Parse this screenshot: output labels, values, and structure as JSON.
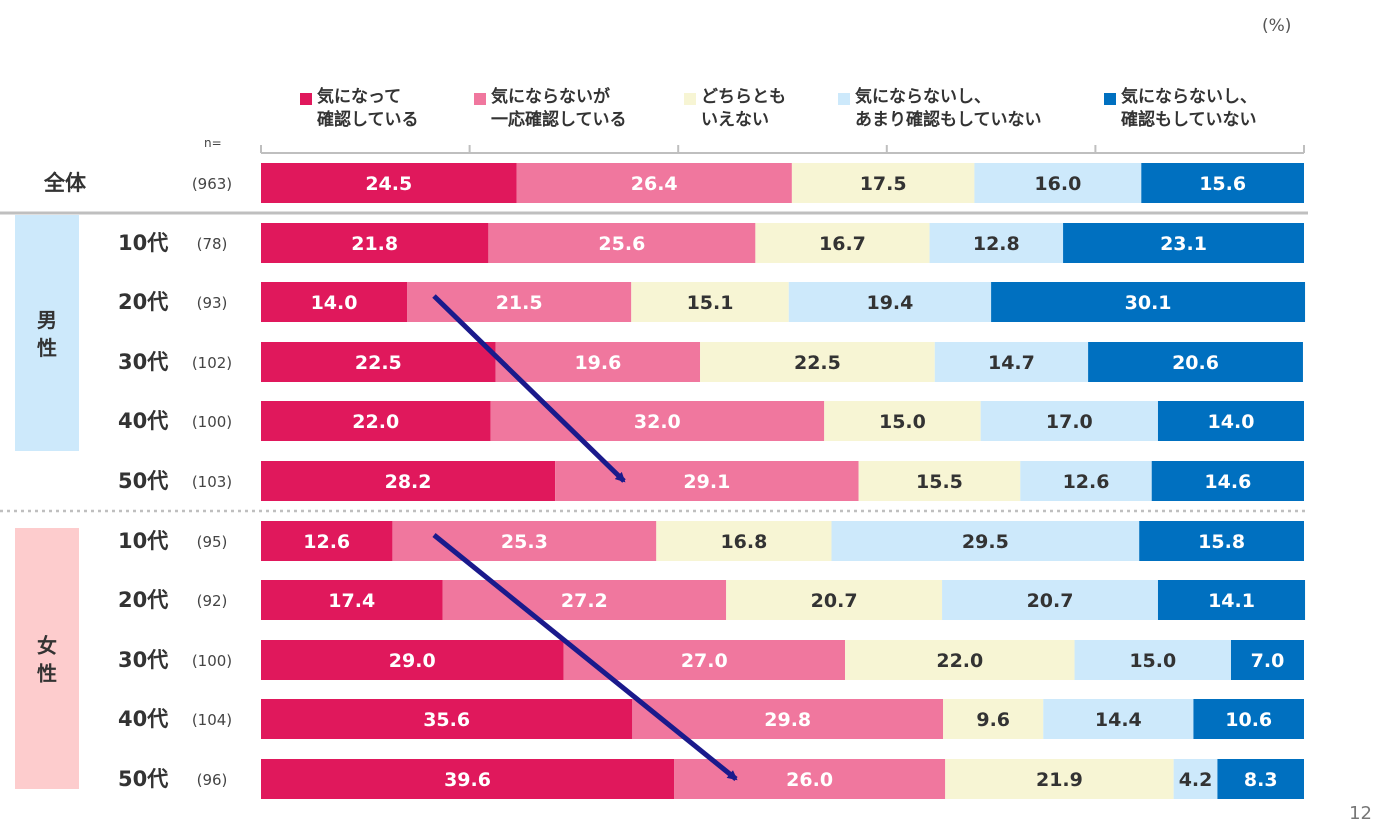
{
  "unit_label": "(%)",
  "page_number": "12",
  "n_label": "n=",
  "legend": [
    {
      "line1": "気になって",
      "line2": "確認している",
      "color": "#e0185c"
    },
    {
      "line1": "気にならないが",
      "line2": "一応確認している",
      "color": "#f0779e"
    },
    {
      "line1": "どちらとも",
      "line2": "いえない",
      "color": "#f7f5d4"
    },
    {
      "line1": "気にならないし、",
      "line2": "あまり確認もしていない",
      "color": "#cde9fb"
    },
    {
      "line1": "気にならないし、",
      "line2": "確認もしていない",
      "color": "#0070c0"
    }
  ],
  "groups": [
    {
      "label": "男性",
      "color": "#cde9fb"
    },
    {
      "label": "女性",
      "color": "#fdcccd"
    }
  ],
  "chart_data": {
    "type": "bar",
    "orientation": "horizontal",
    "stacked": true,
    "xlim": [
      0,
      100
    ],
    "xlabel": "(%)",
    "series_names": [
      "気になって確認している",
      "気にならないが一応確認している",
      "どちらともいえない",
      "気にならないし、あまり確認もしていない",
      "気にならないし、確認もしていない"
    ],
    "rows": [
      {
        "label": "全体",
        "n": "(963)",
        "values": [
          24.5,
          26.4,
          17.5,
          16.0,
          15.6
        ],
        "labels": [
          "24.5",
          "26.4",
          "17.5",
          "16.0",
          "15.6"
        ]
      },
      {
        "label": "10代",
        "n": "(78)",
        "values": [
          21.8,
          25.6,
          16.7,
          12.8,
          23.1
        ],
        "labels": [
          "21.8",
          "25.6",
          "16.7",
          "12.8",
          "23.1"
        ]
      },
      {
        "label": "20代",
        "n": "(93)",
        "values": [
          14.0,
          21.5,
          15.1,
          19.4,
          30.1
        ],
        "labels": [
          "14.0",
          "21.5",
          "15.1",
          "19.4",
          "30.1"
        ]
      },
      {
        "label": "30代",
        "n": "(102)",
        "values": [
          22.5,
          19.6,
          22.5,
          14.7,
          20.6
        ],
        "labels": [
          "22.5",
          "19.6",
          "22.5",
          "14.7",
          "20.6"
        ]
      },
      {
        "label": "40代",
        "n": "(100)",
        "values": [
          22.0,
          32.0,
          15.0,
          17.0,
          14.0
        ],
        "labels": [
          "22.0",
          "32.0",
          "15.0",
          "17.0",
          "14.0"
        ]
      },
      {
        "label": "50代",
        "n": "(103)",
        "values": [
          28.2,
          29.1,
          15.5,
          12.6,
          14.6
        ],
        "labels": [
          "28.2",
          "29.1",
          "15.5",
          "12.6",
          "14.6"
        ]
      },
      {
        "label": "10代",
        "n": "(95)",
        "values": [
          12.6,
          25.3,
          16.8,
          29.5,
          15.8
        ],
        "labels": [
          "12.6",
          "25.3",
          "16.8",
          "29.5",
          "15.8"
        ]
      },
      {
        "label": "20代",
        "n": "(92)",
        "values": [
          17.4,
          27.2,
          20.7,
          20.7,
          14.1
        ],
        "labels": [
          "17.4",
          "27.2",
          "20.7",
          "20.7",
          "14.1"
        ]
      },
      {
        "label": "30代",
        "n": "(100)",
        "values": [
          29.0,
          27.0,
          22.0,
          15.0,
          7.0
        ],
        "labels": [
          "29.0",
          "27.0",
          "22.0",
          "15.0",
          "7.0"
        ]
      },
      {
        "label": "40代",
        "n": "(104)",
        "values": [
          35.6,
          29.8,
          9.6,
          14.4,
          10.6
        ],
        "labels": [
          "35.6",
          "29.8",
          "9.6",
          "14.4",
          "10.6"
        ]
      },
      {
        "label": "50代",
        "n": "(96)",
        "values": [
          39.6,
          26.0,
          21.9,
          4.2,
          8.3
        ],
        "labels": [
          "39.6",
          "26.0",
          "21.9",
          "4.2",
          "8.3"
        ]
      }
    ],
    "annotations": [
      {
        "type": "arrow",
        "description": "男性: 20代 → 50代",
        "from_row": 2,
        "to_row": 5
      },
      {
        "type": "arrow",
        "description": "女性: 10代 → 50代",
        "from_row": 6,
        "to_row": 10
      }
    ]
  }
}
